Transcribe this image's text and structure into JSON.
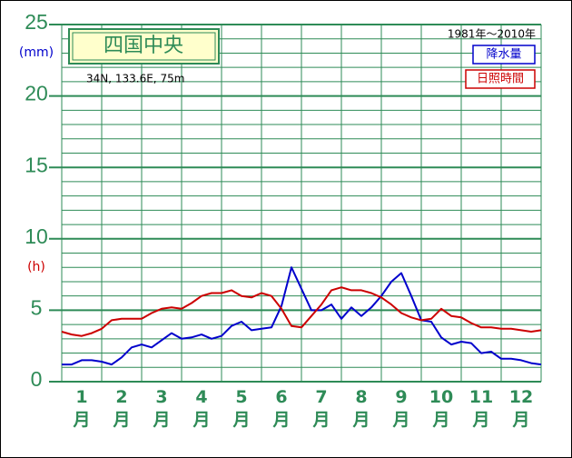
{
  "chart_data": {
    "type": "line",
    "title": "四国中央",
    "subtitle": "34N, 133.6E, 75m",
    "period": "1981年〜2010年",
    "y_unit_precip": "(mm)",
    "y_unit_sun": "(h)",
    "categories": [
      "1月",
      "2月",
      "3月",
      "4月",
      "5月",
      "6月",
      "7月",
      "8月",
      "9月",
      "10月",
      "11月",
      "12月"
    ],
    "x": [
      0,
      0.25,
      0.5,
      0.75,
      1,
      1.25,
      1.5,
      1.75,
      2,
      2.25,
      2.5,
      2.75,
      3,
      3.25,
      3.5,
      3.75,
      4,
      4.25,
      4.5,
      4.75,
      5,
      5.25,
      5.5,
      5.75,
      6,
      6.25,
      6.5,
      6.75,
      7,
      7.25,
      7.5,
      7.75,
      8,
      8.25,
      8.5,
      8.75,
      9,
      9.25,
      9.5,
      9.75,
      10,
      10.25,
      10.5,
      10.75,
      11,
      11.25,
      11.5,
      11.75,
      12
    ],
    "series": [
      {
        "name": "降水量",
        "color": "#0000cc",
        "values": [
          1.2,
          1.2,
          1.5,
          1.5,
          1.4,
          1.2,
          1.7,
          2.4,
          2.6,
          2.4,
          2.9,
          3.4,
          3.0,
          3.1,
          3.3,
          3.0,
          3.2,
          3.9,
          4.2,
          3.6,
          3.7,
          3.8,
          5.3,
          8.0,
          6.5,
          5.0,
          5.0,
          5.4,
          4.4,
          5.2,
          4.6,
          5.2,
          6.0,
          7.0,
          7.6,
          6.0,
          4.3,
          4.2,
          3.1,
          2.6,
          2.8,
          2.7,
          2.0,
          2.1,
          1.6,
          1.6,
          1.5,
          1.3,
          1.2
        ]
      },
      {
        "name": "日照時間",
        "color": "#cc0000",
        "values": [
          3.5,
          3.3,
          3.2,
          3.4,
          3.7,
          4.3,
          4.4,
          4.4,
          4.4,
          4.8,
          5.1,
          5.2,
          5.1,
          5.5,
          6.0,
          6.2,
          6.2,
          6.4,
          6.0,
          5.9,
          6.2,
          6.0,
          5.1,
          3.9,
          3.8,
          4.6,
          5.4,
          6.4,
          6.6,
          6.4,
          6.4,
          6.2,
          5.9,
          5.4,
          4.8,
          4.5,
          4.3,
          4.4,
          5.1,
          4.6,
          4.5,
          4.1,
          3.8,
          3.8,
          3.7,
          3.7,
          3.6,
          3.5,
          3.6
        ]
      }
    ],
    "xlim": [
      0,
      12
    ],
    "xticks": [
      0,
      1,
      2,
      3,
      4,
      5,
      6,
      7,
      8,
      9,
      10,
      11,
      12
    ],
    "ylim": [
      0,
      25
    ],
    "yticks": [
      0,
      5,
      10,
      15,
      20,
      25
    ],
    "yminorticks": [
      1,
      2,
      3,
      4,
      6,
      7,
      8,
      9,
      11,
      12,
      13,
      14,
      16,
      17,
      18,
      19,
      21,
      22,
      23,
      24
    ],
    "grid": true,
    "grid_color": "#2e8b57"
  }
}
